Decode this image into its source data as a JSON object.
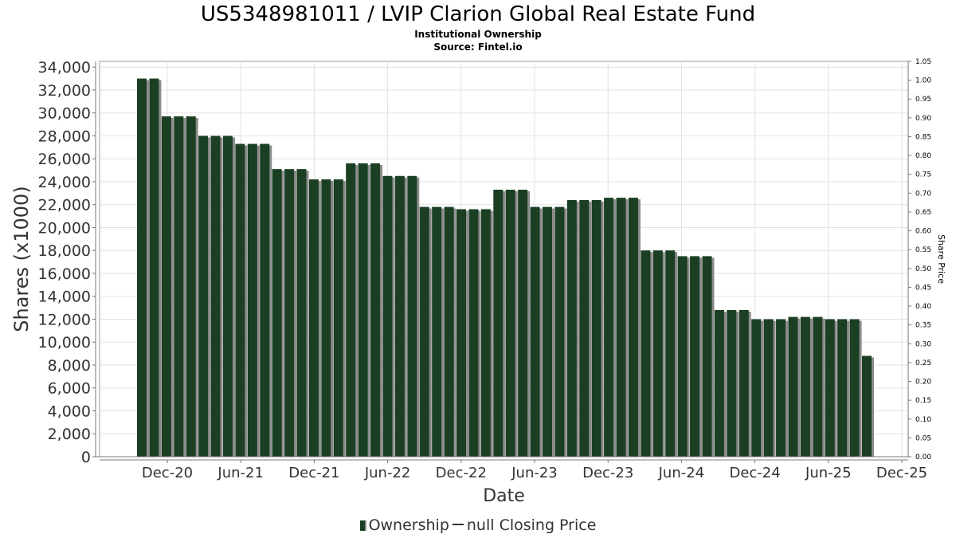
{
  "chart_data": {
    "type": "bar",
    "title": "US5348981011 / LVIP Clarion Global Real Estate Fund",
    "subtitles": [
      "Institutional Ownership",
      "Source: Fintel.io"
    ],
    "xlabel": "Date",
    "ylabel": "Shares (x1000)",
    "y2label": "Share Price",
    "ylim": [
      0,
      34500
    ],
    "y2lim": [
      0,
      1.05
    ],
    "x_ticks": [
      "Dec-20",
      "Jun-21",
      "Dec-21",
      "Jun-22",
      "Dec-22",
      "Jun-23",
      "Dec-23",
      "Jun-24",
      "Dec-24",
      "Jun-25",
      "Dec-25"
    ],
    "y_ticks": [
      0,
      2000,
      4000,
      6000,
      8000,
      10000,
      12000,
      14000,
      16000,
      18000,
      20000,
      22000,
      24000,
      26000,
      28000,
      30000,
      32000,
      34000
    ],
    "y_tick_labels": [
      "0",
      "2,000",
      "4,000",
      "6,000",
      "8,000",
      "10,000",
      "12,000",
      "14,000",
      "16,000",
      "18,000",
      "20,000",
      "22,000",
      "24,000",
      "26,000",
      "28,000",
      "30,000",
      "32,000",
      "34,000"
    ],
    "y2_ticks": [
      "0.00",
      "0.05",
      "0.10",
      "0.15",
      "0.20",
      "0.25",
      "0.30",
      "0.35",
      "0.40",
      "0.45",
      "0.50",
      "0.55",
      "0.60",
      "0.65",
      "0.70",
      "0.75",
      "0.80",
      "0.85",
      "0.90",
      "0.95",
      "1.00",
      "1.05"
    ],
    "grid": true,
    "legend_position": "bottom",
    "series": [
      {
        "name": "Ownership",
        "color": "#1b3f22",
        "values": [
          33000,
          33000,
          29700,
          29700,
          29700,
          28000,
          28000,
          28000,
          27300,
          27300,
          27300,
          25100,
          25100,
          25100,
          24200,
          24200,
          24200,
          25600,
          25600,
          25600,
          24500,
          24500,
          24500,
          21800,
          21800,
          21800,
          21600,
          21600,
          21600,
          23300,
          23300,
          23300,
          21800,
          21800,
          21800,
          22400,
          22400,
          22400,
          22600,
          22600,
          22600,
          18000,
          18000,
          18000,
          17500,
          17500,
          17500,
          12800,
          12800,
          12800,
          12000,
          12000,
          12000,
          12200,
          12200,
          12200,
          12000,
          12000,
          12000,
          8800
        ]
      }
    ],
    "legend": {
      "ownership": "Ownership",
      "closing_price": "null Closing Price"
    }
  }
}
